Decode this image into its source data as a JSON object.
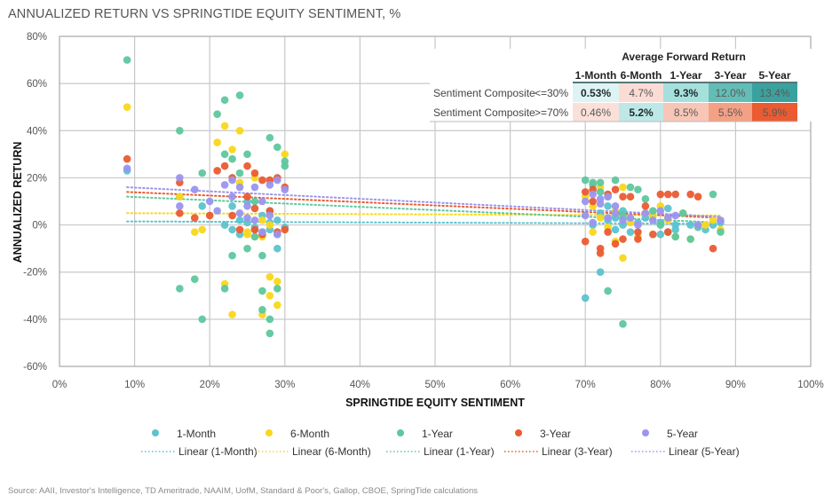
{
  "title": "ANNUALIZED RETURN VS SPRINGTIDE EQUITY SENTIMENT, %",
  "source": "Source: AAII, Investor's Intelligence, TD Ameritrade, NAAIM, UofM, Standard & Poor's, Gallop, CBOE, SpringTide calculations",
  "colors": {
    "1-Month": "#5bc3cf",
    "6-Month": "#f9d71c",
    "1-Year": "#5ec79e",
    "3-Year": "#ea5b31",
    "5-Year": "#9a95ee",
    "grid": "#c8c8c8",
    "axis": "#b0b0b0"
  },
  "chart_data": {
    "type": "scatter",
    "title": "ANNUALIZED RETURN VS SPRINGTIDE EQUITY SENTIMENT, %",
    "xlabel": "SPRINGTIDE EQUITY SENTIMENT",
    "ylabel": "ANNUALIZED RETURN",
    "xlim": [
      0,
      100
    ],
    "ylim": [
      -60,
      80
    ],
    "x_ticks": [
      "0%",
      "10%",
      "20%",
      "30%",
      "40%",
      "50%",
      "60%",
      "70%",
      "80%",
      "90%",
      "100%"
    ],
    "y_ticks": [
      "80%",
      "60%",
      "40%",
      "20%",
      "0%",
      "-20%",
      "-40%",
      "-60%"
    ],
    "grid": true,
    "legend_position": "bottom",
    "legend": [
      {
        "label": "1-Month",
        "kind": "marker",
        "series": "1-Month"
      },
      {
        "label": "6-Month",
        "kind": "marker",
        "series": "6-Month"
      },
      {
        "label": "1-Year",
        "kind": "marker",
        "series": "1-Year"
      },
      {
        "label": "3-Year",
        "kind": "marker",
        "series": "3-Year"
      },
      {
        "label": "5-Year",
        "kind": "marker",
        "series": "5-Year"
      },
      {
        "label": "Linear (1-Month)",
        "kind": "line",
        "series": "1-Month"
      },
      {
        "label": "Linear (6-Month)",
        "kind": "line",
        "series": "6-Month"
      },
      {
        "label": "Linear (1-Year)",
        "kind": "line",
        "series": "1-Year"
      },
      {
        "label": "Linear (3-Year)",
        "kind": "line",
        "series": "3-Year"
      },
      {
        "label": "Linear (5-Year)",
        "kind": "line",
        "series": "5-Year"
      }
    ],
    "series": [
      {
        "name": "1-Month",
        "points": [
          [
            9,
            23
          ],
          [
            16,
            12
          ],
          [
            19,
            8
          ],
          [
            22,
            0
          ],
          [
            23,
            -2
          ],
          [
            24,
            2
          ],
          [
            25,
            1
          ],
          [
            26,
            -1
          ],
          [
            27,
            -3
          ],
          [
            28,
            1
          ],
          [
            29,
            -4
          ],
          [
            29,
            -10
          ],
          [
            30,
            -1
          ],
          [
            23,
            8
          ],
          [
            25,
            10
          ],
          [
            27,
            4
          ],
          [
            28,
            6
          ],
          [
            24,
            -4
          ],
          [
            26,
            -2
          ],
          [
            28,
            -2
          ],
          [
            29,
            2
          ],
          [
            70,
            -31
          ],
          [
            71,
            0
          ],
          [
            72,
            5
          ],
          [
            72,
            -20
          ],
          [
            73,
            2
          ],
          [
            73,
            8
          ],
          [
            74,
            -2
          ],
          [
            74,
            3
          ],
          [
            75,
            0
          ],
          [
            75,
            6
          ],
          [
            76,
            -3
          ],
          [
            77,
            1
          ],
          [
            78,
            3
          ],
          [
            79,
            4
          ],
          [
            80,
            1
          ],
          [
            80,
            -4
          ],
          [
            81,
            7
          ],
          [
            82,
            0
          ],
          [
            82,
            -2
          ],
          [
            84,
            0
          ],
          [
            86,
            -2
          ],
          [
            87,
            0
          ],
          [
            88,
            1
          ]
        ]
      },
      {
        "name": "6-Month",
        "points": [
          [
            9,
            50
          ],
          [
            16,
            12
          ],
          [
            18,
            -3
          ],
          [
            19,
            -2
          ],
          [
            21,
            35
          ],
          [
            22,
            42
          ],
          [
            23,
            32
          ],
          [
            24,
            40
          ],
          [
            25,
            -4
          ],
          [
            25,
            -3
          ],
          [
            26,
            -5
          ],
          [
            27,
            -38
          ],
          [
            27,
            -5
          ],
          [
            28,
            -22
          ],
          [
            28,
            -30
          ],
          [
            29,
            -34
          ],
          [
            29,
            -24
          ],
          [
            30,
            30
          ],
          [
            22,
            -25
          ],
          [
            23,
            -38
          ],
          [
            28,
            0
          ],
          [
            27,
            2
          ],
          [
            26,
            20
          ],
          [
            24,
            18
          ],
          [
            70,
            12
          ],
          [
            71,
            8
          ],
          [
            71,
            -3
          ],
          [
            72,
            16
          ],
          [
            72,
            3
          ],
          [
            73,
            13
          ],
          [
            73,
            -1
          ],
          [
            74,
            6
          ],
          [
            74,
            -7
          ],
          [
            75,
            -14
          ],
          [
            75,
            16
          ],
          [
            76,
            1
          ],
          [
            77,
            -5
          ],
          [
            78,
            5
          ],
          [
            79,
            4
          ],
          [
            80,
            8
          ],
          [
            81,
            2
          ],
          [
            82,
            -5
          ],
          [
            83,
            5
          ],
          [
            84,
            -6
          ],
          [
            85,
            0
          ],
          [
            86,
            0
          ],
          [
            87,
            2
          ],
          [
            88,
            -2
          ]
        ]
      },
      {
        "name": "1-Year",
        "points": [
          [
            9,
            70
          ],
          [
            16,
            40
          ],
          [
            16,
            -27
          ],
          [
            18,
            -23
          ],
          [
            19,
            -40
          ],
          [
            19,
            22
          ],
          [
            21,
            47
          ],
          [
            22,
            53
          ],
          [
            22,
            30
          ],
          [
            23,
            28
          ],
          [
            24,
            55
          ],
          [
            24,
            22
          ],
          [
            25,
            30
          ],
          [
            26,
            10
          ],
          [
            26,
            -5
          ],
          [
            27,
            -28
          ],
          [
            27,
            -36
          ],
          [
            28,
            -46
          ],
          [
            28,
            -40
          ],
          [
            28,
            37
          ],
          [
            29,
            33
          ],
          [
            29,
            -27
          ],
          [
            30,
            25
          ],
          [
            30,
            27
          ],
          [
            27,
            -13
          ],
          [
            25,
            -10
          ],
          [
            23,
            -13
          ],
          [
            22,
            -27
          ],
          [
            70,
            19
          ],
          [
            71,
            18
          ],
          [
            71,
            17
          ],
          [
            72,
            14
          ],
          [
            72,
            18
          ],
          [
            73,
            12
          ],
          [
            73,
            -28
          ],
          [
            74,
            19
          ],
          [
            75,
            -42
          ],
          [
            75,
            4
          ],
          [
            76,
            16
          ],
          [
            77,
            15
          ],
          [
            78,
            11
          ],
          [
            79,
            6
          ],
          [
            80,
            0
          ],
          [
            81,
            -3
          ],
          [
            82,
            -5
          ],
          [
            83,
            5
          ],
          [
            84,
            -6
          ],
          [
            85,
            -1
          ],
          [
            87,
            13
          ],
          [
            88,
            -3
          ]
        ]
      },
      {
        "name": "3-Year",
        "points": [
          [
            9,
            28
          ],
          [
            16,
            18
          ],
          [
            16,
            5
          ],
          [
            18,
            3
          ],
          [
            20,
            4
          ],
          [
            21,
            23
          ],
          [
            22,
            25
          ],
          [
            23,
            20
          ],
          [
            23,
            4
          ],
          [
            24,
            -2
          ],
          [
            25,
            25
          ],
          [
            25,
            12
          ],
          [
            26,
            22
          ],
          [
            26,
            -2
          ],
          [
            27,
            19
          ],
          [
            27,
            -4
          ],
          [
            28,
            19
          ],
          [
            28,
            6
          ],
          [
            29,
            20
          ],
          [
            29,
            -3
          ],
          [
            30,
            16
          ],
          [
            30,
            -2
          ],
          [
            26,
            7
          ],
          [
            70,
            14
          ],
          [
            70,
            -7
          ],
          [
            71,
            10
          ],
          [
            71,
            15
          ],
          [
            72,
            -10
          ],
          [
            72,
            -12
          ],
          [
            73,
            13
          ],
          [
            73,
            -3
          ],
          [
            74,
            15
          ],
          [
            74,
            -8
          ],
          [
            75,
            -6
          ],
          [
            75,
            12
          ],
          [
            76,
            12
          ],
          [
            77,
            -3
          ],
          [
            77,
            -6
          ],
          [
            78,
            8
          ],
          [
            79,
            -4
          ],
          [
            80,
            13
          ],
          [
            81,
            13
          ],
          [
            81,
            -3
          ],
          [
            82,
            13
          ],
          [
            84,
            13
          ],
          [
            85,
            12
          ],
          [
            87,
            -10
          ]
        ]
      },
      {
        "name": "5-Year",
        "points": [
          [
            9,
            24
          ],
          [
            16,
            20
          ],
          [
            16,
            8
          ],
          [
            18,
            15
          ],
          [
            20,
            10
          ],
          [
            21,
            6
          ],
          [
            22,
            17
          ],
          [
            23,
            12
          ],
          [
            24,
            16
          ],
          [
            24,
            5
          ],
          [
            25,
            8
          ],
          [
            25,
            3
          ],
          [
            26,
            16
          ],
          [
            26,
            2
          ],
          [
            27,
            10
          ],
          [
            27,
            -3
          ],
          [
            28,
            17
          ],
          [
            28,
            4
          ],
          [
            29,
            19
          ],
          [
            29,
            -4
          ],
          [
            30,
            15
          ],
          [
            23,
            19
          ],
          [
            70,
            10
          ],
          [
            70,
            4
          ],
          [
            71,
            13
          ],
          [
            71,
            1
          ],
          [
            72,
            9
          ],
          [
            72,
            11
          ],
          [
            73,
            3
          ],
          [
            73,
            12
          ],
          [
            74,
            5
          ],
          [
            74,
            8
          ],
          [
            75,
            2
          ],
          [
            76,
            3
          ],
          [
            77,
            0
          ],
          [
            78,
            5
          ],
          [
            79,
            2
          ],
          [
            80,
            6
          ],
          [
            81,
            3
          ],
          [
            82,
            4
          ],
          [
            85,
            0
          ],
          [
            88,
            2
          ]
        ]
      }
    ],
    "trendlines": [
      {
        "name": "Linear (1-Month)",
        "series": "1-Month",
        "x": [
          9,
          88
        ],
        "y": [
          1.5,
          0.5
        ]
      },
      {
        "name": "Linear (6-Month)",
        "series": "6-Month",
        "x": [
          9,
          88
        ],
        "y": [
          5,
          4
        ]
      },
      {
        "name": "Linear (1-Year)",
        "series": "1-Year",
        "x": [
          9,
          88
        ],
        "y": [
          12,
          1
        ]
      },
      {
        "name": "Linear (3-Year)",
        "series": "3-Year",
        "x": [
          9,
          88
        ],
        "y": [
          14,
          3
        ]
      },
      {
        "name": "Linear (5-Year)",
        "series": "5-Year",
        "x": [
          9,
          88
        ],
        "y": [
          16,
          3.5
        ]
      }
    ]
  },
  "table": {
    "title": "Average Forward Return",
    "columns": [
      "1-Month",
      "6-Month",
      "1-Year",
      "3-Year",
      "5-Year"
    ],
    "rows": [
      {
        "label": "Sentiment Composite",
        "condition": "<=30%",
        "values": [
          "0.53%",
          "4.7%",
          "9.3%",
          "12.0%",
          "13.4%"
        ],
        "fills": [
          "#def3f3",
          "#fbdcd5",
          "#a6e0dc",
          "#63bdb6",
          "#3aa29e"
        ],
        "bold": [
          true,
          false,
          true,
          false,
          false
        ]
      },
      {
        "label": "Sentiment Composite",
        "condition": ">=70%",
        "values": [
          "0.46%",
          "5.2%",
          "8.5%",
          "5.5%",
          "5.9%"
        ],
        "fills": [
          "#fbe0d9",
          "#bde8e6",
          "#f8c6b7",
          "#f4a085",
          "#ea5b31"
        ],
        "bold": [
          false,
          true,
          false,
          false,
          false
        ]
      }
    ]
  }
}
